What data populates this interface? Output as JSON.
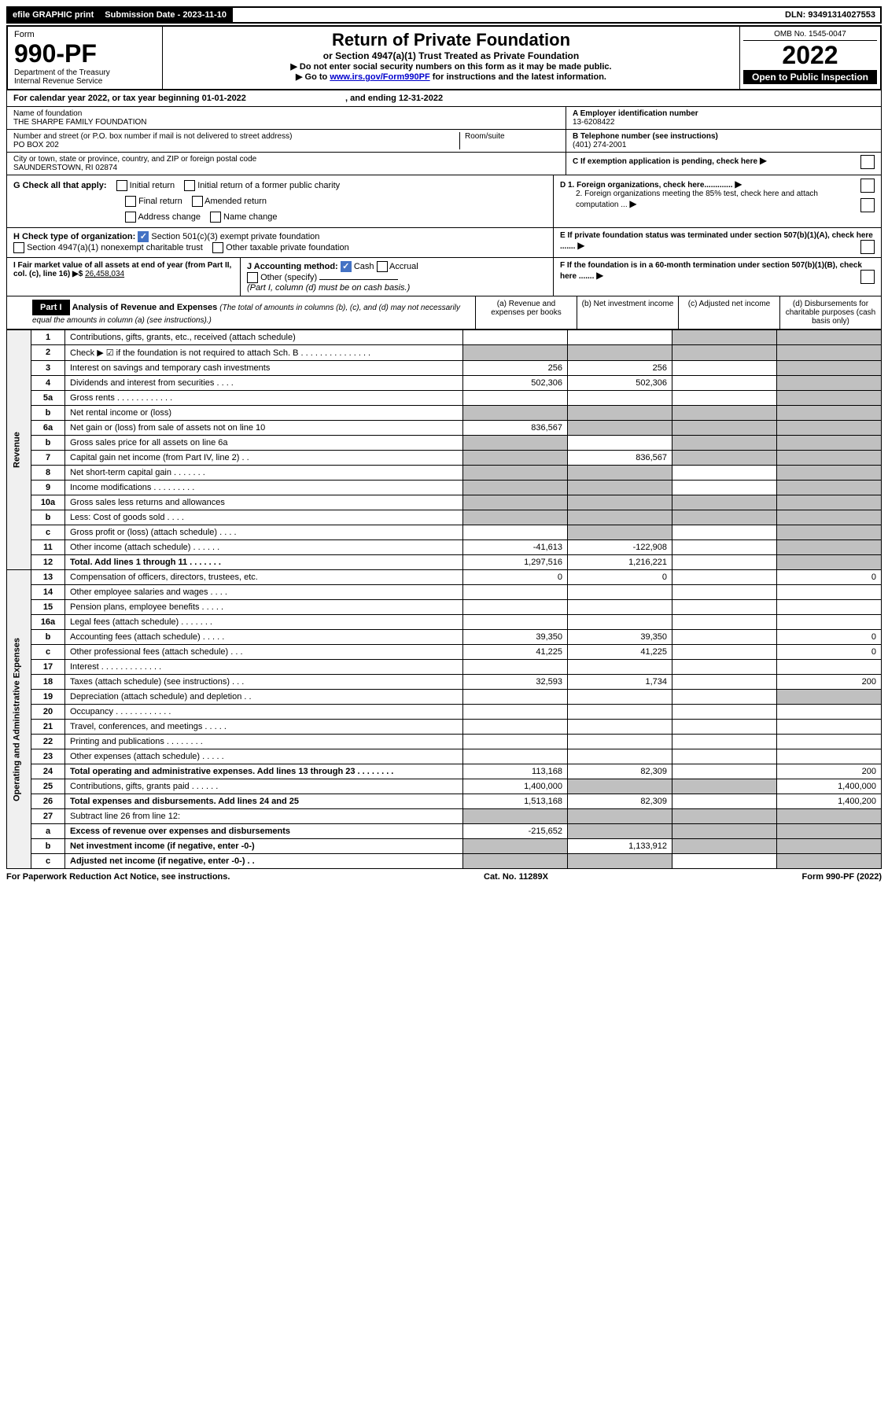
{
  "top_bar": {
    "efile": "efile GRAPHIC print",
    "submission_label": "Submission Date - 2023-11-10",
    "dln": "DLN: 93491314027553"
  },
  "header": {
    "form_label": "Form",
    "form_number": "990-PF",
    "dept": "Department of the Treasury",
    "irs": "Internal Revenue Service",
    "title": "Return of Private Foundation",
    "subtitle": "or Section 4947(a)(1) Trust Treated as Private Foundation",
    "note1": "▶ Do not enter social security numbers on this form as it may be made public.",
    "note2_prefix": "▶ Go to ",
    "note2_link": "www.irs.gov/Form990PF",
    "note2_suffix": " for instructions and the latest information.",
    "omb": "OMB No. 1545-0047",
    "year": "2022",
    "open": "Open to Public Inspection"
  },
  "calendar": {
    "text_a": "For calendar year 2022, or tax year beginning 01-01-2022",
    "text_b": ", and ending 12-31-2022"
  },
  "foundation": {
    "name_label": "Name of foundation",
    "name": "THE SHARPE FAMILY FOUNDATION",
    "addr_label": "Number and street (or P.O. box number if mail is not delivered to street address)",
    "addr": "PO BOX 202",
    "room_label": "Room/suite",
    "city_label": "City or town, state or province, country, and ZIP or foreign postal code",
    "city": "SAUNDERSTOWN, RI  02874",
    "ein_label": "A Employer identification number",
    "ein": "13-6208422",
    "tel_label": "B Telephone number (see instructions)",
    "tel": "(401) 274-2001",
    "c_label": "C If exemption application is pending, check here",
    "d1": "D 1. Foreign organizations, check here.............",
    "d2": "2. Foreign organizations meeting the 85% test, check here and attach computation ...",
    "e_label": "E If private foundation status was terminated under section 507(b)(1)(A), check here .......",
    "f_label": "F If the foundation is in a 60-month termination under section 507(b)(1)(B), check here ......."
  },
  "check_g": {
    "label": "G Check all that apply:",
    "opts": [
      "Initial return",
      "Initial return of a former public charity",
      "Final return",
      "Amended return",
      "Address change",
      "Name change"
    ]
  },
  "check_h": {
    "label": "H Check type of organization:",
    "opt1": "Section 501(c)(3) exempt private foundation",
    "opt2": "Section 4947(a)(1) nonexempt charitable trust",
    "opt3": "Other taxable private foundation"
  },
  "line_i": {
    "label": "I Fair market value of all assets at end of year (from Part II, col. (c), line 16) ▶$ ",
    "value": "26,458,034"
  },
  "line_j": {
    "label": "J Accounting method:",
    "cash": "Cash",
    "accrual": "Accrual",
    "other": "Other (specify)",
    "note": "(Part I, column (d) must be on cash basis.)"
  },
  "part1": {
    "header": "Part I",
    "title": "Analysis of Revenue and Expenses",
    "title_note": "(The total of amounts in columns (b), (c), and (d) may not necessarily equal the amounts in column (a) (see instructions).)",
    "col_a": "(a) Revenue and expenses per books",
    "col_b": "(b) Net investment income",
    "col_c": "(c) Adjusted net income",
    "col_d": "(d) Disbursements for charitable purposes (cash basis only)"
  },
  "revenue_label": "Revenue",
  "expenses_label": "Operating and Administrative Expenses",
  "rows": [
    {
      "n": "1",
      "label": "Contributions, gifts, grants, etc., received (attach schedule)",
      "a": "",
      "b": "",
      "c": "g",
      "d": "g"
    },
    {
      "n": "2",
      "label": "Check ▶ ☑ if the foundation is not required to attach Sch. B . . . . . . . . . . . . . . .",
      "a": "g",
      "b": "g",
      "c": "g",
      "d": "g"
    },
    {
      "n": "3",
      "label": "Interest on savings and temporary cash investments",
      "a": "256",
      "b": "256",
      "c": "",
      "d": "g"
    },
    {
      "n": "4",
      "label": "Dividends and interest from securities . . . .",
      "a": "502,306",
      "b": "502,306",
      "c": "",
      "d": "g"
    },
    {
      "n": "5a",
      "label": "Gross rents . . . . . . . . . . . .",
      "a": "",
      "b": "",
      "c": "",
      "d": "g"
    },
    {
      "n": "b",
      "label": "Net rental income or (loss)",
      "a": "g",
      "b": "g",
      "c": "g",
      "d": "g"
    },
    {
      "n": "6a",
      "label": "Net gain or (loss) from sale of assets not on line 10",
      "a": "836,567",
      "b": "g",
      "c": "g",
      "d": "g"
    },
    {
      "n": "b",
      "label": "Gross sales price for all assets on line 6a",
      "a": "g",
      "b": "",
      "c": "g",
      "d": "g"
    },
    {
      "n": "7",
      "label": "Capital gain net income (from Part IV, line 2) . .",
      "a": "g",
      "b": "836,567",
      "c": "g",
      "d": "g"
    },
    {
      "n": "8",
      "label": "Net short-term capital gain . . . . . . .",
      "a": "g",
      "b": "g",
      "c": "",
      "d": "g"
    },
    {
      "n": "9",
      "label": "Income modifications . . . . . . . . .",
      "a": "g",
      "b": "g",
      "c": "",
      "d": "g"
    },
    {
      "n": "10a",
      "label": "Gross sales less returns and allowances",
      "a": "g",
      "b": "g",
      "c": "g",
      "d": "g"
    },
    {
      "n": "b",
      "label": "Less: Cost of goods sold . . . .",
      "a": "g",
      "b": "g",
      "c": "g",
      "d": "g"
    },
    {
      "n": "c",
      "label": "Gross profit or (loss) (attach schedule) . . . .",
      "a": "",
      "b": "g",
      "c": "",
      "d": "g"
    },
    {
      "n": "11",
      "label": "Other income (attach schedule) . . . . . .",
      "a": "-41,613",
      "b": "-122,908",
      "c": "",
      "d": "g"
    },
    {
      "n": "12",
      "label": "Total. Add lines 1 through 11 . . . . . . .",
      "a": "1,297,516",
      "b": "1,216,221",
      "c": "",
      "d": "g",
      "bold": true
    },
    {
      "n": "13",
      "label": "Compensation of officers, directors, trustees, etc.",
      "a": "0",
      "b": "0",
      "c": "",
      "d": "0"
    },
    {
      "n": "14",
      "label": "Other employee salaries and wages . . . .",
      "a": "",
      "b": "",
      "c": "",
      "d": ""
    },
    {
      "n": "15",
      "label": "Pension plans, employee benefits . . . . .",
      "a": "",
      "b": "",
      "c": "",
      "d": ""
    },
    {
      "n": "16a",
      "label": "Legal fees (attach schedule) . . . . . . .",
      "a": "",
      "b": "",
      "c": "",
      "d": ""
    },
    {
      "n": "b",
      "label": "Accounting fees (attach schedule) . . . . .",
      "a": "39,350",
      "b": "39,350",
      "c": "",
      "d": "0"
    },
    {
      "n": "c",
      "label": "Other professional fees (attach schedule) . . .",
      "a": "41,225",
      "b": "41,225",
      "c": "",
      "d": "0"
    },
    {
      "n": "17",
      "label": "Interest . . . . . . . . . . . . .",
      "a": "",
      "b": "",
      "c": "",
      "d": ""
    },
    {
      "n": "18",
      "label": "Taxes (attach schedule) (see instructions) . . .",
      "a": "32,593",
      "b": "1,734",
      "c": "",
      "d": "200"
    },
    {
      "n": "19",
      "label": "Depreciation (attach schedule) and depletion . .",
      "a": "",
      "b": "",
      "c": "",
      "d": "g"
    },
    {
      "n": "20",
      "label": "Occupancy . . . . . . . . . . . .",
      "a": "",
      "b": "",
      "c": "",
      "d": ""
    },
    {
      "n": "21",
      "label": "Travel, conferences, and meetings . . . . .",
      "a": "",
      "b": "",
      "c": "",
      "d": ""
    },
    {
      "n": "22",
      "label": "Printing and publications . . . . . . . .",
      "a": "",
      "b": "",
      "c": "",
      "d": ""
    },
    {
      "n": "23",
      "label": "Other expenses (attach schedule) . . . . .",
      "a": "",
      "b": "",
      "c": "",
      "d": ""
    },
    {
      "n": "24",
      "label": "Total operating and administrative expenses. Add lines 13 through 23 . . . . . . . .",
      "a": "113,168",
      "b": "82,309",
      "c": "",
      "d": "200",
      "bold": true
    },
    {
      "n": "25",
      "label": "Contributions, gifts, grants paid . . . . . .",
      "a": "1,400,000",
      "b": "g",
      "c": "g",
      "d": "1,400,000"
    },
    {
      "n": "26",
      "label": "Total expenses and disbursements. Add lines 24 and 25",
      "a": "1,513,168",
      "b": "82,309",
      "c": "",
      "d": "1,400,200",
      "bold": true
    },
    {
      "n": "27",
      "label": "Subtract line 26 from line 12:",
      "a": "g",
      "b": "g",
      "c": "g",
      "d": "g"
    },
    {
      "n": "a",
      "label": "Excess of revenue over expenses and disbursements",
      "a": "-215,652",
      "b": "g",
      "c": "g",
      "d": "g",
      "bold": true
    },
    {
      "n": "b",
      "label": "Net investment income (if negative, enter -0-)",
      "a": "g",
      "b": "1,133,912",
      "c": "g",
      "d": "g",
      "bold": true
    },
    {
      "n": "c",
      "label": "Adjusted net income (if negative, enter -0-) . .",
      "a": "g",
      "b": "g",
      "c": "",
      "d": "g",
      "bold": true
    }
  ],
  "footer": {
    "left": "For Paperwork Reduction Act Notice, see instructions.",
    "center": "Cat. No. 11289X",
    "right": "Form 990-PF (2022)"
  }
}
